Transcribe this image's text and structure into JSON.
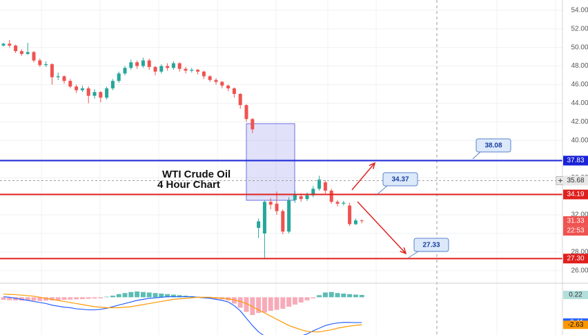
{
  "chart_data": [
    {
      "type": "candlestick",
      "title": "WTI Crude Oil",
      "subtitle": "4 Hour Chart",
      "up_color": "#26a69a",
      "down_color": "#ef5350",
      "open": [
        50.2,
        50.4,
        50.2,
        49.6,
        49.3,
        49.5,
        48.6,
        48.1,
        48.2,
        46.8,
        46.9,
        46.4,
        45.8,
        45.4,
        45.6,
        44.8,
        45.2,
        44.6,
        45.6,
        46.4,
        47.2,
        47.8,
        48.4,
        48.0,
        48.6,
        47.9,
        47.4,
        48.0,
        47.8,
        48.3,
        47.7,
        47.5,
        47.6,
        47.4,
        46.9,
        46.5,
        46.3,
        45.9,
        45.6,
        45.0,
        43.8,
        42.3,
        30.6,
        30.0,
        33.4,
        33.2,
        32.4,
        30.2,
        33.6,
        34.0,
        33.7,
        34.1,
        34.8,
        35.5,
        34.6,
        33.4,
        33.2,
        33.0,
        31.0,
        31.4
      ],
      "high": [
        50.5,
        50.8,
        50.3,
        49.8,
        50.5,
        49.6,
        48.8,
        48.5,
        48.3,
        47.3,
        47.0,
        46.6,
        46.0,
        45.9,
        45.8,
        45.5,
        45.3,
        45.8,
        46.6,
        47.4,
        48.0,
        48.7,
        48.6,
        48.9,
        48.8,
        48.0,
        48.2,
        48.3,
        48.5,
        48.4,
        47.9,
        47.8,
        47.7,
        47.5,
        47.0,
        46.7,
        46.4,
        46.0,
        45.7,
        45.1,
        43.9,
        42.4,
        31.6,
        33.6,
        33.8,
        34.5,
        32.6,
        33.9,
        34.6,
        34.3,
        34.4,
        35.1,
        36.2,
        35.7,
        34.8,
        33.6,
        33.5,
        33.3,
        31.6,
        31.5
      ],
      "low": [
        50.1,
        50.0,
        49.4,
        49.1,
        49.2,
        48.4,
        47.9,
        47.9,
        46.0,
        46.5,
        46.1,
        45.6,
        45.1,
        45.2,
        44.0,
        44.5,
        44.1,
        44.4,
        45.4,
        46.2,
        47.0,
        47.6,
        47.7,
        47.8,
        47.6,
        47.0,
        47.2,
        47.5,
        47.6,
        47.4,
        47.2,
        47.3,
        47.1,
        46.6,
        46.3,
        46.0,
        45.6,
        45.3,
        44.6,
        43.4,
        42.0,
        40.8,
        29.5,
        27.3,
        32.6,
        32.0,
        29.9,
        30.0,
        33.3,
        33.4,
        33.5,
        33.9,
        34.6,
        34.3,
        33.2,
        32.9,
        33.0,
        30.8,
        30.9,
        31.1
      ],
      "close": [
        50.4,
        50.2,
        49.6,
        49.3,
        49.5,
        48.6,
        48.1,
        48.2,
        46.8,
        46.9,
        46.4,
        45.8,
        45.4,
        45.6,
        44.8,
        45.2,
        44.6,
        45.6,
        46.4,
        47.2,
        47.8,
        48.4,
        48.0,
        48.6,
        47.9,
        47.4,
        48.0,
        47.8,
        48.3,
        47.7,
        47.5,
        47.6,
        47.4,
        46.9,
        46.5,
        46.3,
        45.9,
        45.6,
        45.0,
        43.8,
        42.3,
        41.2,
        31.3,
        33.4,
        33.1,
        32.4,
        30.2,
        33.6,
        34.2,
        33.7,
        34.1,
        34.8,
        35.8,
        34.6,
        33.4,
        33.2,
        33.3,
        31.0,
        31.4,
        31.33
      ],
      "ylim": [
        24.8,
        55.1
      ],
      "yticks": [
        {
          "value": 26,
          "label": "26.00"
        },
        {
          "value": 28,
          "label": "28.00"
        },
        {
          "value": 30,
          "label": "30.00"
        },
        {
          "value": 32,
          "label": "32.00"
        },
        {
          "value": 34,
          "label": "34.00"
        },
        {
          "value": 36,
          "label": "36.00"
        },
        {
          "value": 38,
          "label": "38.00"
        },
        {
          "value": 40,
          "label": "40.00"
        },
        {
          "value": 42,
          "label": "42.00"
        },
        {
          "value": 44,
          "label": "44.00"
        },
        {
          "value": 46,
          "label": "46.00"
        },
        {
          "value": 48,
          "label": "48.00"
        },
        {
          "value": 50,
          "label": "50.00"
        },
        {
          "value": 52,
          "label": "52.00"
        },
        {
          "value": 54,
          "label": "54.00"
        }
      ],
      "grid": true,
      "levels": [
        {
          "value": 37.83,
          "color": "#1a23d6"
        },
        {
          "value": 34.19,
          "color": "#e0201e"
        },
        {
          "value": 27.3,
          "label": "27.30",
          "color": "#e0201e"
        }
      ],
      "current_price": {
        "value": 35.68,
        "color": "#9e9e9e"
      },
      "countdown": "22:53",
      "annotations": [
        "38.08",
        "34.37",
        "27.33"
      ]
    },
    {
      "type": "macd",
      "up_color": "#26a69a",
      "down_color": "#f48fa0",
      "macd_color": "#2962ff",
      "signal_color": "#ff9800",
      "histogram": [
        -0.25,
        -0.28,
        -0.3,
        -0.32,
        -0.3,
        -0.33,
        -0.35,
        -0.32,
        -0.3,
        -0.28,
        -0.25,
        -0.22,
        -0.2,
        -0.18,
        -0.15,
        -0.12,
        -0.1,
        0.05,
        0.15,
        0.3,
        0.4,
        0.5,
        0.55,
        0.5,
        0.45,
        0.4,
        0.35,
        0.3,
        0.25,
        0.2,
        0.15,
        0.1,
        0.05,
        -0.05,
        -0.1,
        -0.15,
        -0.2,
        -0.3,
        -0.6,
        -1.0,
        -1.4,
        -1.7,
        -1.5,
        -1.45,
        -1.3,
        -1.2,
        -1.1,
        -0.9,
        -0.7,
        -0.5,
        -0.3,
        -0.1,
        0.2,
        0.45,
        0.5,
        0.4,
        0.35,
        0.3,
        0.25,
        0.22
      ],
      "macd": [
        0.05,
        0.0,
        -0.1,
        -0.2,
        -0.3,
        -0.4,
        -0.5,
        -0.6,
        -0.75,
        -0.85,
        -0.95,
        -1.0,
        -1.1,
        -1.15,
        -1.2,
        -1.2,
        -1.15,
        -1.05,
        -0.9,
        -0.75,
        -0.6,
        -0.45,
        -0.3,
        -0.2,
        -0.1,
        -0.05,
        0.0,
        0.05,
        0.05,
        0.05,
        0.05,
        0.05,
        0.0,
        -0.05,
        -0.1,
        -0.2,
        -0.3,
        -0.45,
        -0.8,
        -1.3,
        -2.0,
        -2.7,
        -3.3,
        -3.7,
        -3.9,
        -4.0,
        -4.0,
        -3.95,
        -3.85,
        -3.7,
        -3.5,
        -3.2,
        -2.95,
        -2.7,
        -2.55,
        -2.45,
        -2.4,
        -2.4,
        -2.42,
        -2.41
      ],
      "signal": [
        0.3,
        0.28,
        0.25,
        0.2,
        0.15,
        0.1,
        0.0,
        -0.1,
        -0.2,
        -0.3,
        -0.4,
        -0.5,
        -0.6,
        -0.7,
        -0.8,
        -0.9,
        -0.95,
        -1.0,
        -1.0,
        -1.0,
        -0.95,
        -0.9,
        -0.8,
        -0.7,
        -0.6,
        -0.5,
        -0.4,
        -0.3,
        -0.2,
        -0.15,
        -0.1,
        -0.05,
        0.0,
        0.0,
        0.0,
        -0.05,
        -0.1,
        -0.15,
        -0.25,
        -0.4,
        -0.6,
        -0.9,
        -1.2,
        -1.5,
        -1.8,
        -2.1,
        -2.4,
        -2.7,
        -2.9,
        -3.1,
        -3.25,
        -3.3,
        -3.3,
        -3.2,
        -3.1,
        -2.95,
        -2.85,
        -2.75,
        -2.68,
        -2.63
      ],
      "ylim": [
        -3.6,
        1.34
      ]
    }
  ]
}
